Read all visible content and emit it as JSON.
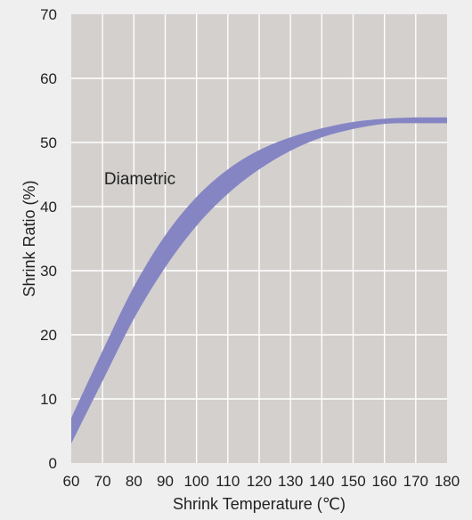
{
  "chart_data": {
    "type": "area",
    "title": "",
    "xlabel": "Shrink Temperature (℃)",
    "ylabel": "Shrink Ratio (%)",
    "xlim": [
      60,
      180
    ],
    "ylim": [
      0,
      70
    ],
    "x_ticks": [
      60,
      70,
      80,
      90,
      100,
      110,
      120,
      130,
      140,
      150,
      160,
      170,
      180
    ],
    "y_ticks": [
      0,
      10,
      20,
      30,
      40,
      50,
      60,
      70
    ],
    "grid": true,
    "annotation": "Diametric",
    "band_color": "#8585c4",
    "plot_bg": "#d3d0ce",
    "grid_color": "#ffffff",
    "series": [
      {
        "name": "Diametric",
        "x": [
          60,
          70,
          80,
          90,
          100,
          110,
          120,
          130,
          140,
          150,
          160,
          170,
          180
        ],
        "upper": [
          7.0,
          17.5,
          27.5,
          35.5,
          41.5,
          45.8,
          48.8,
          50.8,
          52.2,
          53.2,
          53.7,
          53.9,
          53.9
        ],
        "lower": [
          3.0,
          12.8,
          22.5,
          30.5,
          37.0,
          42.0,
          45.8,
          48.7,
          50.8,
          52.1,
          52.9,
          53.0,
          53.0
        ]
      }
    ]
  }
}
